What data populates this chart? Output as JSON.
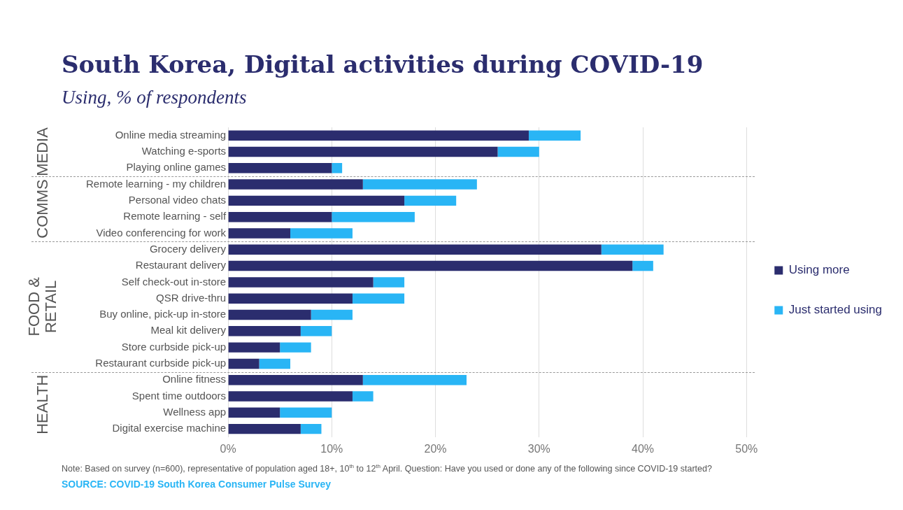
{
  "chart_data": {
    "type": "bar",
    "orientation": "horizontal",
    "stacked": true,
    "title": "South Korea, Digital activities during COVID-19",
    "subtitle": "Using, % of respondents",
    "categories": [
      "Online media streaming",
      "Watching e-sports",
      "Playing online games",
      "Remote learning - my children",
      "Personal video chats",
      "Remote learning - self",
      "Video conferencing for work",
      "Grocery delivery",
      "Restaurant delivery",
      "Self check-out in-store",
      "QSR drive-thru",
      "Buy online, pick-up in-store",
      "Meal kit delivery",
      "Store curbside pick-up",
      "Restaurant curbside pick-up",
      "Online fitness",
      "Spent time outdoors",
      "Wellness app",
      "Digital exercise machine"
    ],
    "series": [
      {
        "name": "Using more",
        "color": "#2b2d6e",
        "values": [
          29,
          26,
          10,
          13,
          17,
          10,
          6,
          36,
          39,
          14,
          12,
          8,
          7,
          5,
          3,
          13,
          12,
          5,
          7
        ]
      },
      {
        "name": "Just started using",
        "color": "#29b5f5",
        "values": [
          5,
          4,
          1,
          11,
          5,
          8,
          6,
          6,
          2,
          3,
          5,
          4,
          3,
          3,
          3,
          10,
          2,
          5,
          2
        ]
      }
    ],
    "xlim": [
      0,
      50
    ],
    "xticks": [
      {
        "value": 0,
        "label": "0%"
      },
      {
        "value": 10,
        "label": "10%"
      },
      {
        "value": 20,
        "label": "20%"
      },
      {
        "value": 30,
        "label": "30%"
      },
      {
        "value": 40,
        "label": "40%"
      },
      {
        "value": 50,
        "label": "50%"
      }
    ],
    "grid": "x",
    "legend": "right",
    "annotations": [
      "MEDIA",
      "COMMS",
      "FOOD & RETAIL",
      "HEALTH",
      "Note: Based on survey (n=600), representative of population aged 18+, 10$^{th}$ to 12$^{th}$ April. Question: Have you used or done any of the following since COVID-19 started?",
      "SOURCE: COVID-19 South Korea Consumer Pulse Survey"
    ]
  }
}
